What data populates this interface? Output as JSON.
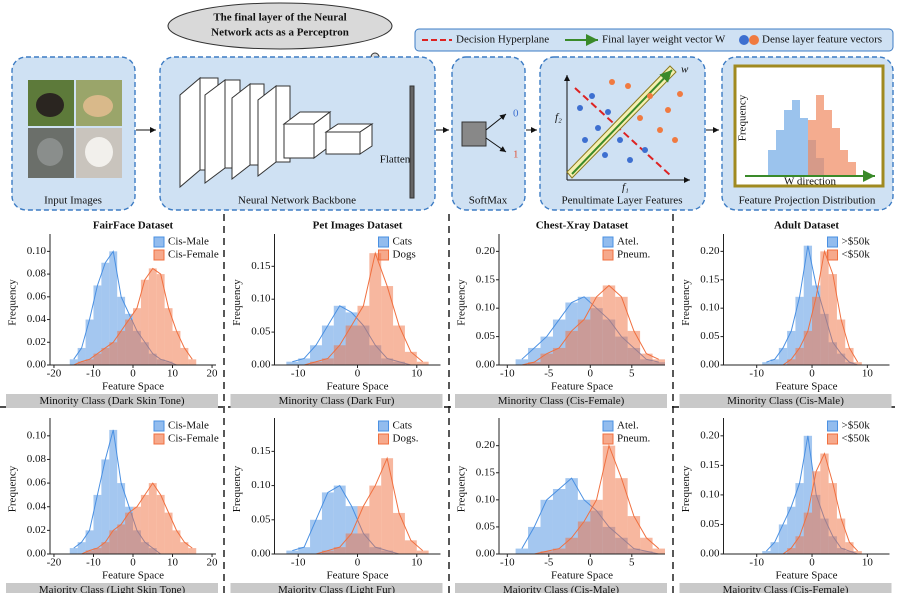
{
  "diagram": {
    "cloud": [
      "The final layer of the Neural",
      "Network acts as a Perceptron"
    ],
    "legend": [
      "Decision Hyperplane",
      "Final layer weight vector W",
      "Dense layer feature vectors"
    ],
    "stages": [
      "Input Images",
      "Neural Network Backbone",
      "SoftMax",
      "Penultimate Layer Features",
      "Feature Projection Distribution"
    ],
    "flatten": "Flatten",
    "outputs": [
      "0",
      "1"
    ],
    "axes": {
      "f1": "f₁",
      "f2": "f₂",
      "w": "w"
    },
    "inset": {
      "y": "Frequency",
      "x": "W direction"
    }
  },
  "chart_data": [
    {
      "type": "histogram",
      "title": "FairFace Dataset",
      "caption": "Minority Class (Dark Skin Tone)",
      "xlabel": "Feature Space",
      "ylabel": "Frequency",
      "xlim": [
        -21,
        21
      ],
      "xticks": [
        -20,
        -10,
        0,
        10,
        20
      ],
      "ylim": [
        0,
        0.11
      ],
      "yticks": [
        {
          "value": 0,
          "label": "0.00"
        },
        0.02,
        0.04,
        0.06,
        0.08,
        {
          "value": 0.1,
          "label": "0.10"
        }
      ],
      "bins": [
        -16,
        -14,
        -12,
        -10,
        -8,
        -6,
        -4,
        -2,
        0,
        2,
        4,
        6,
        8,
        10,
        12,
        14,
        16
      ],
      "series": [
        {
          "name": "Cis-Male",
          "color": "#4a90e2",
          "values": [
            0.005,
            0.015,
            0.04,
            0.07,
            0.09,
            0.1,
            0.06,
            0.045,
            0.03,
            0.02,
            0.01,
            0.005,
            0.003,
            0,
            0,
            0
          ]
        },
        {
          "name": "Cis-Female",
          "color": "#f07040",
          "values": [
            0,
            0.003,
            0.005,
            0.01,
            0.015,
            0.02,
            0.03,
            0.04,
            0.05,
            0.075,
            0.085,
            0.08,
            0.05,
            0.03,
            0.015,
            0.005
          ]
        }
      ]
    },
    {
      "type": "histogram",
      "title": "Pet Images Dataset",
      "caption": "Minority Class (Dark Fur)",
      "xlabel": "Feature Space",
      "ylabel": "Frequency",
      "xlim": [
        -14,
        14
      ],
      "xticks": [
        -10,
        0,
        10
      ],
      "ylim": [
        0,
        0.19
      ],
      "yticks": [
        {
          "value": 0,
          "label": "0.00"
        },
        0.05,
        {
          "value": 0.1,
          "label": "0.10"
        },
        0.15
      ],
      "bins": [
        -12,
        -10,
        -8,
        -6,
        -4,
        -2,
        0,
        2,
        4,
        6,
        8,
        10,
        12
      ],
      "series": [
        {
          "name": "Cats",
          "color": "#4a90e2",
          "values": [
            0.005,
            0.01,
            0.03,
            0.06,
            0.09,
            0.08,
            0.06,
            0.03,
            0.01,
            0.005,
            0,
            0
          ]
        },
        {
          "name": "Dogs",
          "color": "#f07040",
          "values": [
            0,
            0,
            0.005,
            0.01,
            0.03,
            0.06,
            0.09,
            0.17,
            0.12,
            0.06,
            0.02,
            0.005
          ]
        }
      ]
    },
    {
      "type": "histogram",
      "title": "Chest-Xray Dataset",
      "caption": "Minority Class (Cis-Female)",
      "xlabel": "Feature Space",
      "ylabel": "Frequency",
      "xlim": [
        -11,
        9
      ],
      "xticks": [
        -10,
        -5,
        0,
        5
      ],
      "ylim": [
        0,
        0.22
      ],
      "yticks": [
        {
          "value": 0,
          "label": "0.00"
        },
        0.05,
        {
          "value": 0.1,
          "label": "0.10"
        },
        0.15,
        {
          "value": 0.2,
          "label": "0.20"
        }
      ],
      "bins": [
        -9,
        -7.5,
        -6,
        -4.5,
        -3,
        -1.5,
        0,
        1.5,
        3,
        4.5,
        6,
        7.5,
        9
      ],
      "series": [
        {
          "name": "Atel.",
          "color": "#4a90e2",
          "values": [
            0.01,
            0.03,
            0.05,
            0.08,
            0.11,
            0.12,
            0.1,
            0.08,
            0.05,
            0.03,
            0.01,
            0.005
          ]
        },
        {
          "name": "Pneum.",
          "color": "#f07040",
          "values": [
            0,
            0.005,
            0.02,
            0.03,
            0.06,
            0.08,
            0.12,
            0.14,
            0.12,
            0.06,
            0.02,
            0.01
          ]
        }
      ]
    },
    {
      "type": "histogram",
      "title": "Adult Dataset",
      "caption": "Minority Class (Cis-Male)",
      "xlabel": "Feature Space",
      "ylabel": "Frequency",
      "xlim": [
        -16,
        14
      ],
      "xticks": [
        -10,
        0,
        10
      ],
      "ylim": [
        0,
        0.22
      ],
      "yticks": [
        {
          "value": 0,
          "label": "0.00"
        },
        0.05,
        {
          "value": 0.1,
          "label": "0.10"
        },
        0.15,
        {
          "value": 0.2,
          "label": "0.20"
        }
      ],
      "bins": [
        -9,
        -7.5,
        -6,
        -4.5,
        -3,
        -1.5,
        0,
        1.5,
        3,
        4.5,
        6,
        7.5,
        9
      ],
      "series": [
        {
          "name": ">$50k",
          "color": "#4a90e2",
          "values": [
            0.005,
            0.01,
            0.03,
            0.06,
            0.12,
            0.21,
            0.14,
            0.09,
            0.04,
            0.02,
            0.005,
            0
          ]
        },
        {
          "name": "<$50k",
          "color": "#f07040",
          "values": [
            0,
            0,
            0,
            0.01,
            0.03,
            0.06,
            0.12,
            0.2,
            0.16,
            0.08,
            0.03,
            0.005
          ]
        }
      ]
    },
    {
      "type": "histogram",
      "caption": "Majority Class (Light Skin Tone)",
      "xlabel": "Feature Space",
      "ylabel": "Frequency",
      "xlim": [
        -21,
        21
      ],
      "xticks": [
        -20,
        -10,
        0,
        10,
        20
      ],
      "ylim": [
        0,
        0.11
      ],
      "yticks": [
        {
          "value": 0,
          "label": "0.00"
        },
        0.02,
        0.04,
        0.06,
        0.08,
        {
          "value": 0.1,
          "label": "0.10"
        }
      ],
      "bins": [
        -16,
        -14,
        -12,
        -10,
        -8,
        -6,
        -4,
        -2,
        0,
        2,
        4,
        6,
        8,
        10,
        12,
        14,
        16
      ],
      "series": [
        {
          "name": "Cis-Male",
          "color": "#4a90e2",
          "values": [
            0.005,
            0.01,
            0.02,
            0.05,
            0.08,
            0.105,
            0.06,
            0.04,
            0.02,
            0.01,
            0.005,
            0,
            0,
            0,
            0,
            0
          ]
        },
        {
          "name": "Cis-Female",
          "color": "#f07040",
          "values": [
            0,
            0,
            0.003,
            0.005,
            0.01,
            0.02,
            0.025,
            0.035,
            0.04,
            0.05,
            0.06,
            0.05,
            0.035,
            0.02,
            0.01,
            0.005
          ]
        }
      ]
    },
    {
      "type": "histogram",
      "caption": "Majority Class (Light Fur)",
      "xlabel": "Feature Space",
      "ylabel": "Frequency",
      "xlim": [
        -14,
        14
      ],
      "xticks": [
        -10,
        0,
        10
      ],
      "ylim": [
        0,
        0.19
      ],
      "yticks": [
        {
          "value": 0,
          "label": "0.00"
        },
        0.05,
        {
          "value": 0.1,
          "label": "0.10"
        },
        0.15
      ],
      "bins": [
        -12,
        -10,
        -8,
        -6,
        -4,
        -2,
        0,
        2,
        4,
        6,
        8,
        10,
        12
      ],
      "series": [
        {
          "name": "Cats",
          "color": "#4a90e2",
          "values": [
            0.005,
            0.01,
            0.05,
            0.09,
            0.1,
            0.07,
            0.03,
            0.01,
            0.005,
            0,
            0,
            0
          ]
        },
        {
          "name": "Dogs.",
          "color": "#f07040",
          "values": [
            0,
            0,
            0,
            0.005,
            0.01,
            0.03,
            0.07,
            0.1,
            0.14,
            0.06,
            0.02,
            0.005
          ]
        }
      ]
    },
    {
      "type": "histogram",
      "caption": "Majority Class (Cis-Male)",
      "xlabel": "Feature Space",
      "ylabel": "Frequency",
      "xlim": [
        -11,
        9
      ],
      "xticks": [
        -10,
        -5,
        0,
        5
      ],
      "ylim": [
        0,
        0.24
      ],
      "yticks": [
        {
          "value": 0,
          "label": "0.00"
        },
        0.05,
        {
          "value": 0.1,
          "label": "0.10"
        },
        0.15,
        {
          "value": 0.2,
          "label": "0.20"
        }
      ],
      "bins": [
        -9,
        -7.5,
        -6,
        -4.5,
        -3,
        -1.5,
        0,
        1.5,
        3,
        4.5,
        6,
        7.5,
        9
      ],
      "series": [
        {
          "name": "Atel.",
          "color": "#4a90e2",
          "values": [
            0.01,
            0.05,
            0.1,
            0.12,
            0.14,
            0.1,
            0.08,
            0.05,
            0.03,
            0.01,
            0.005,
            0
          ]
        },
        {
          "name": "Pneum.",
          "color": "#f07040",
          "values": [
            0,
            0,
            0.005,
            0.01,
            0.03,
            0.06,
            0.1,
            0.2,
            0.14,
            0.07,
            0.03,
            0.01
          ]
        }
      ]
    },
    {
      "type": "histogram",
      "caption": "Majority Class (Cis-Female)",
      "xlabel": "Feature Space",
      "ylabel": "Frequency",
      "xlim": [
        -16,
        14
      ],
      "xticks": [
        -10,
        0,
        10
      ],
      "ylim": [
        0,
        0.22
      ],
      "yticks": [
        {
          "value": 0,
          "label": "0.00"
        },
        0.05,
        {
          "value": 0.1,
          "label": "0.10"
        },
        0.15,
        {
          "value": 0.2,
          "label": "0.20"
        }
      ],
      "bins": [
        -9,
        -7.5,
        -6,
        -4.5,
        -3,
        -1.5,
        0,
        1.5,
        3,
        4.5,
        6,
        7.5,
        9
      ],
      "series": [
        {
          "name": ">$50k",
          "color": "#4a90e2",
          "values": [
            0.005,
            0.02,
            0.05,
            0.08,
            0.12,
            0.2,
            0.1,
            0.06,
            0.03,
            0.01,
            0.005,
            0
          ]
        },
        {
          "name": "<$50k",
          "color": "#f07040",
          "values": [
            0,
            0,
            0,
            0.01,
            0.03,
            0.07,
            0.14,
            0.17,
            0.12,
            0.06,
            0.02,
            0.005
          ]
        }
      ]
    }
  ]
}
